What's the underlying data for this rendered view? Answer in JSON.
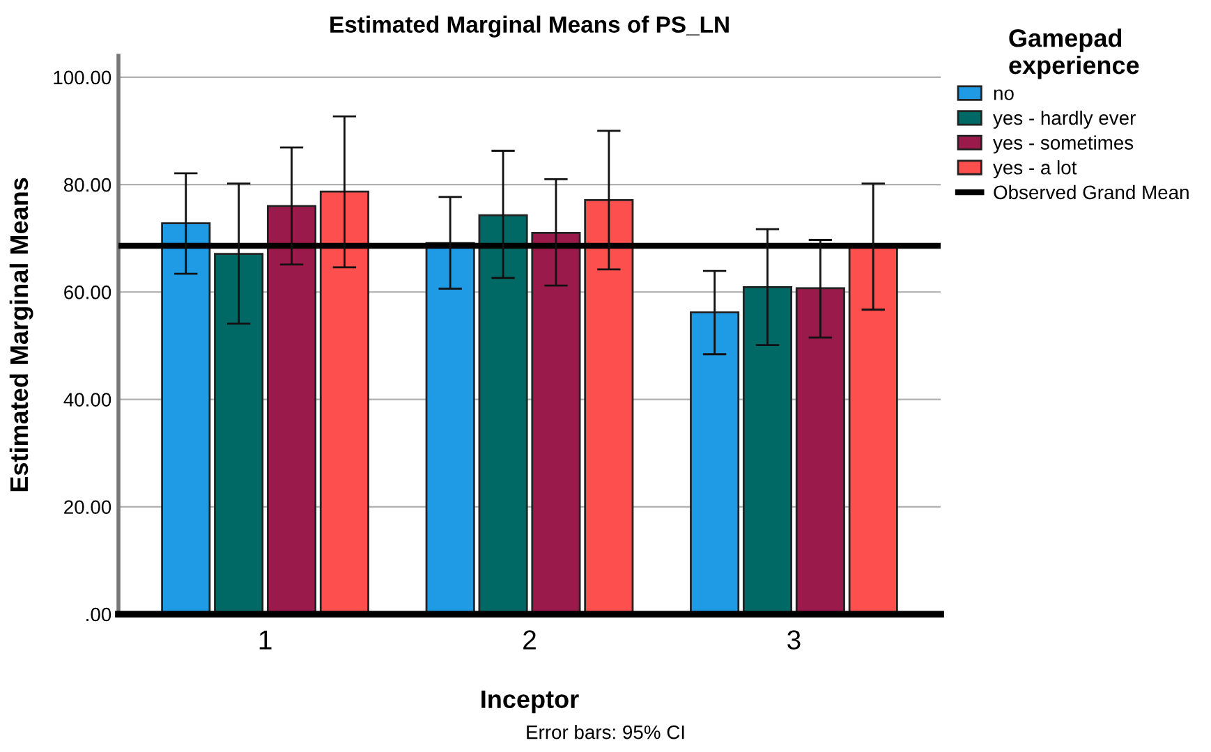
{
  "chart_data": {
    "type": "bar",
    "title": "Estimated Marginal Means of PS_LN",
    "xlabel": "Inceptor",
    "ylabel": "Estimated Marginal Means",
    "legend_title": "Gamepad experience",
    "categories": [
      "1",
      "2",
      "3"
    ],
    "series": [
      {
        "name": "no",
        "color": "#1f9ae4",
        "values": [
          72.8,
          69.1,
          56.2
        ],
        "errors": [
          [
            63.4,
            82.1
          ],
          [
            60.6,
            77.7
          ],
          [
            48.4,
            63.9
          ]
        ]
      },
      {
        "name": "yes - hardly ever",
        "color": "#006865",
        "values": [
          67.1,
          74.3,
          60.9
        ],
        "errors": [
          [
            54.1,
            80.2
          ],
          [
            62.6,
            86.3
          ],
          [
            50.1,
            71.7
          ]
        ]
      },
      {
        "name": "yes - sometimes",
        "color": "#9a1b4b",
        "values": [
          76.0,
          71.0,
          60.7
        ],
        "errors": [
          [
            65.1,
            86.9
          ],
          [
            61.2,
            81.0
          ],
          [
            51.5,
            69.7
          ]
        ]
      },
      {
        "name": "yes - a lot",
        "color": "#fe4f4f",
        "values": [
          78.7,
          77.1,
          68.5
        ],
        "errors": [
          [
            64.6,
            92.7
          ],
          [
            64.2,
            90.0
          ],
          [
            56.7,
            80.2
          ]
        ]
      }
    ],
    "ref_lines": [
      {
        "axis": "y",
        "value": 68.6,
        "label": "Observed Grand Mean",
        "color": "#000000"
      }
    ],
    "ylim": [
      0,
      104
    ],
    "yticks": [
      {
        "value": 0,
        "label": ".00"
      },
      {
        "value": 20,
        "label": "20.00"
      },
      {
        "value": 40,
        "label": "40.00"
      },
      {
        "value": 60,
        "label": "60.00"
      },
      {
        "value": 80,
        "label": "80.00"
      },
      {
        "value": 100,
        "label": "100.00"
      }
    ],
    "grid": "y",
    "legend": "top right",
    "annotations": [
      "Error bars: 95% CI"
    ]
  }
}
